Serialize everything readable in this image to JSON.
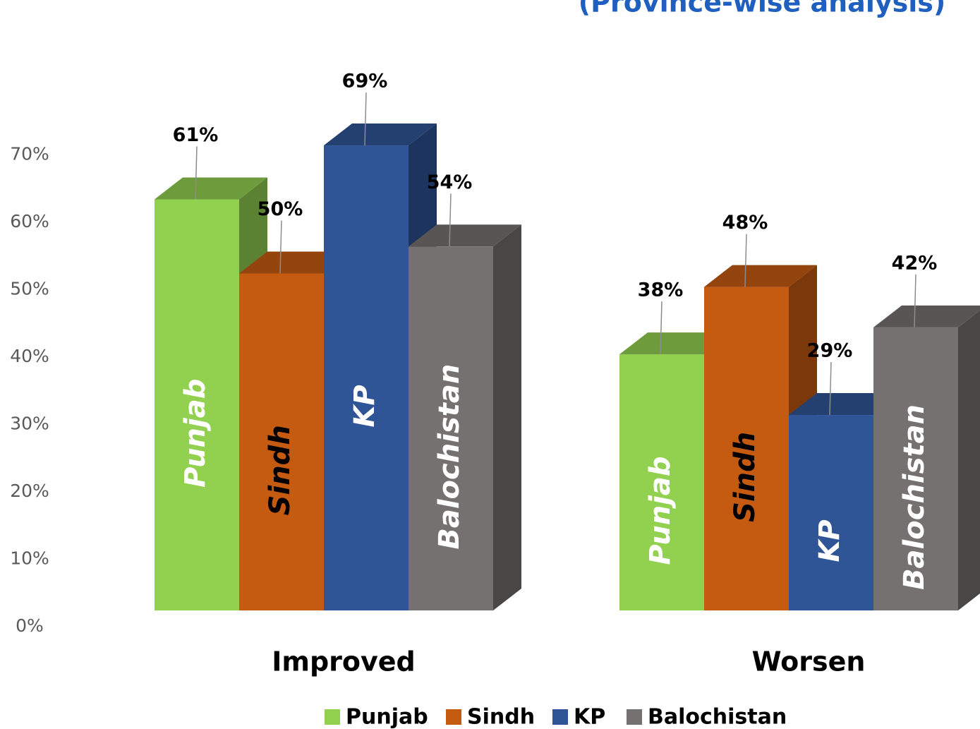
{
  "chart_data": {
    "type": "bar3d",
    "title": "(Province-wise analysis)",
    "categories": [
      "Improved",
      "Worsen"
    ],
    "series": [
      {
        "name": "Punjab",
        "color": "#92d050",
        "values": [
          61,
          38
        ],
        "value_labels": [
          "61%",
          "38%"
        ]
      },
      {
        "name": "Sindh",
        "color": "#c55a11",
        "values": [
          50,
          48
        ],
        "value_labels": [
          "50%",
          "48%"
        ]
      },
      {
        "name": "KP",
        "color": "#2f5597",
        "values": [
          69,
          29
        ],
        "value_labels": [
          "69%",
          "29%"
        ]
      },
      {
        "name": "Balochistan",
        "color": "#767171",
        "values": [
          54,
          42
        ],
        "value_labels": [
          "54%",
          "42%"
        ]
      }
    ],
    "ylim": [
      0,
      70
    ],
    "yticks": [
      {
        "value": 0,
        "label": "0%"
      },
      {
        "value": 10,
        "label": "10%"
      },
      {
        "value": 20,
        "label": "20%"
      },
      {
        "value": 30,
        "label": "30%"
      },
      {
        "value": 40,
        "label": "40%"
      },
      {
        "value": 50,
        "label": "50%"
      },
      {
        "value": 60,
        "label": "60%"
      },
      {
        "value": 70,
        "label": "70%"
      }
    ],
    "grid": false,
    "legend": "bottom"
  }
}
